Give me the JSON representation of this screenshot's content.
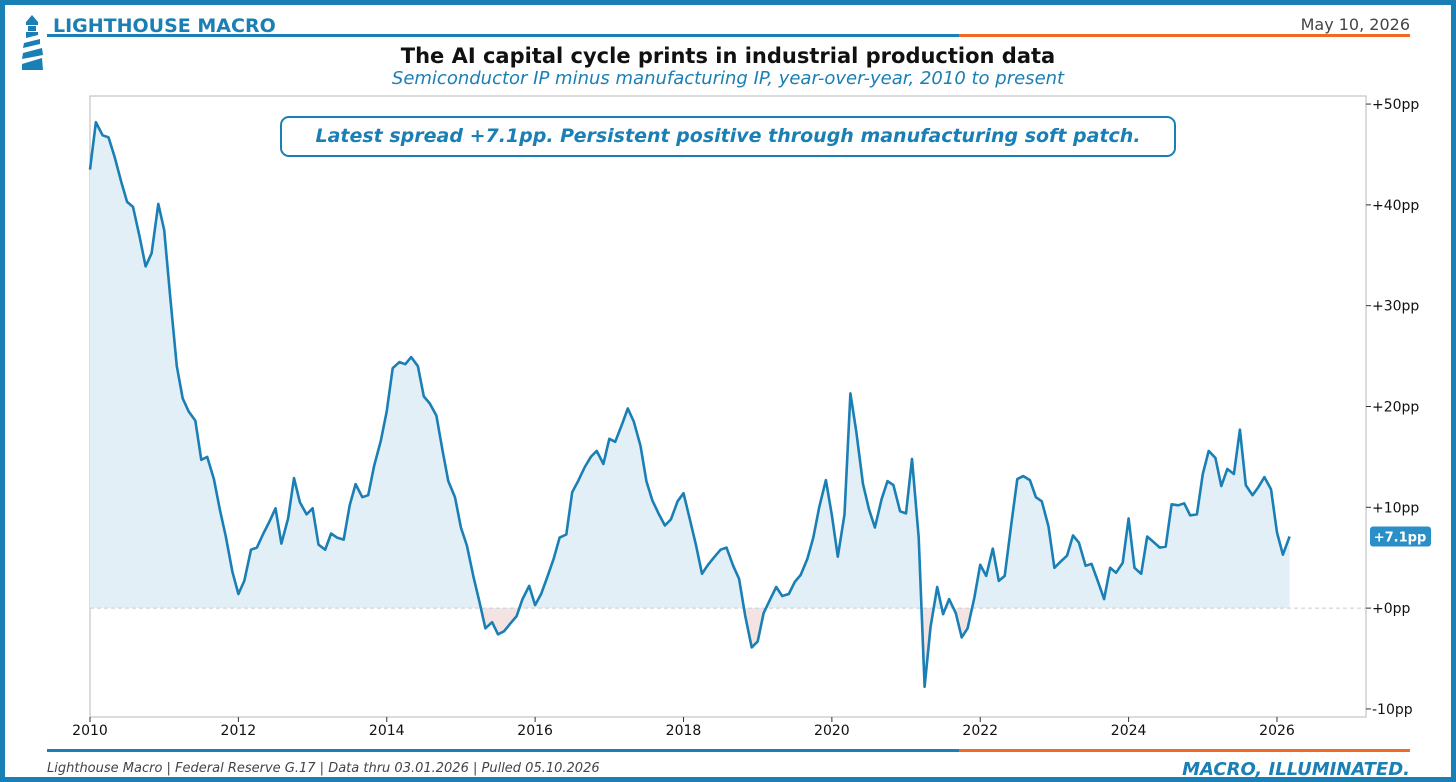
{
  "header": {
    "brand": "LIGHTHOUSE MACRO",
    "date": "May 10, 2026"
  },
  "footer": {
    "source": "Lighthouse Macro | Federal Reserve G.17 | Data thru 03.01.2026 | Pulled 05.10.2026",
    "tagline": "MACRO, ILLUMINATED."
  },
  "colors": {
    "primary": "#1a7fb5",
    "accent": "#f26a21",
    "fill_positive": "#e3eff7",
    "fill_negative": "#f3e3e2",
    "badge": "#2a8fc7"
  },
  "icons": {
    "logo": "lighthouse-icon"
  },
  "chart_data": {
    "type": "area",
    "title": "The AI capital cycle prints in industrial production data",
    "subtitle": "Semiconductor IP minus manufacturing IP, year-over-year, 2010 to present",
    "annotation": "Latest spread +7.1pp. Persistent positive through manufacturing soft patch.",
    "latest_label": "+7.1pp",
    "latest_value": 7.1,
    "xlabel": "",
    "ylabel": "",
    "xlim": [
      2010,
      2027.2
    ],
    "ylim": [
      -10.8,
      50.8
    ],
    "x_ticks": [
      2010,
      2012,
      2014,
      2016,
      2018,
      2020,
      2022,
      2024,
      2026
    ],
    "x_tick_labels": [
      "2010",
      "2012",
      "2014",
      "2016",
      "2018",
      "2020",
      "2022",
      "2024",
      "2026"
    ],
    "y_ticks": [
      -10,
      0,
      10,
      20,
      30,
      40,
      50
    ],
    "y_tick_labels": [
      "-10pp",
      "+0pp",
      "+10pp",
      "+20pp",
      "+30pp",
      "+40pp",
      "+50pp"
    ],
    "y_axis_side": "right",
    "zero_line": true,
    "grid": false,
    "series": [
      {
        "x": [
          2010.0,
          2010.08,
          2010.17,
          2010.25,
          2010.33,
          2010.42,
          2010.5,
          2010.58,
          2010.67,
          2010.75,
          2010.83,
          2010.92,
          2011.0,
          2011.08,
          2011.17,
          2011.25,
          2011.33,
          2011.42,
          2011.5,
          2011.58,
          2011.67,
          2011.75,
          2011.83,
          2011.92,
          2012.0,
          2012.08,
          2012.17,
          2012.25,
          2012.33,
          2012.42,
          2012.5,
          2012.58,
          2012.67,
          2012.75,
          2012.83,
          2012.92,
          2013.0,
          2013.08,
          2013.17,
          2013.25,
          2013.33,
          2013.42,
          2013.5,
          2013.58,
          2013.67,
          2013.75,
          2013.83,
          2013.92,
          2014.0,
          2014.08,
          2014.17,
          2014.25,
          2014.33,
          2014.42,
          2014.5,
          2014.58,
          2014.67,
          2014.75,
          2014.83,
          2014.92,
          2015.0,
          2015.08,
          2015.17,
          2015.25,
          2015.33,
          2015.42,
          2015.5,
          2015.58,
          2015.67,
          2015.75,
          2015.83,
          2015.92,
          2016.0,
          2016.08,
          2016.17,
          2016.25,
          2016.33,
          2016.42,
          2016.5,
          2016.58,
          2016.67,
          2016.75,
          2016.83,
          2016.92,
          2017.0,
          2017.08,
          2017.17,
          2017.25,
          2017.33,
          2017.42,
          2017.5,
          2017.58,
          2017.67,
          2017.75,
          2017.83,
          2017.92,
          2018.0,
          2018.08,
          2018.17,
          2018.25,
          2018.33,
          2018.42,
          2018.5,
          2018.58,
          2018.67,
          2018.75,
          2018.83,
          2018.92,
          2019.0,
          2019.08,
          2019.17,
          2019.25,
          2019.33,
          2019.42,
          2019.5,
          2019.58,
          2019.67,
          2019.75,
          2019.83,
          2019.92,
          2020.0,
          2020.08,
          2020.17,
          2020.25,
          2020.33,
          2020.42,
          2020.5,
          2020.58,
          2020.67,
          2020.75,
          2020.83,
          2020.92,
          2021.0,
          2021.08,
          2021.17,
          2021.25,
          2021.33,
          2021.42,
          2021.5,
          2021.58,
          2021.67,
          2021.75,
          2021.83,
          2021.92,
          2022.0,
          2022.08,
          2022.17,
          2022.25,
          2022.33,
          2022.42,
          2022.5,
          2022.58,
          2022.67,
          2022.75,
          2022.83,
          2022.92,
          2023.0,
          2023.08,
          2023.17,
          2023.25,
          2023.33,
          2023.42,
          2023.5,
          2023.58,
          2023.67,
          2023.75,
          2023.83,
          2023.92,
          2024.0,
          2024.08,
          2024.17,
          2024.25,
          2024.33,
          2024.42,
          2024.5,
          2024.58,
          2024.67,
          2024.75,
          2024.83,
          2024.92,
          2025.0,
          2025.08,
          2025.17,
          2025.25,
          2025.33,
          2025.42,
          2025.5,
          2025.58,
          2025.67,
          2025.75,
          2025.83,
          2025.92,
          2026.0,
          2026.08,
          2026.17
        ],
        "values": [
          43.5,
          48.2,
          46.9,
          46.7,
          44.8,
          42.3,
          40.3,
          39.8,
          36.8,
          33.9,
          35.2,
          40.1,
          37.5,
          31.0,
          24.0,
          20.8,
          19.5,
          18.6,
          14.7,
          15.0,
          12.8,
          9.8,
          7.1,
          3.6,
          1.4,
          2.7,
          5.8,
          6.0,
          7.3,
          8.6,
          9.9,
          6.4,
          8.9,
          12.9,
          10.5,
          9.3,
          9.9,
          6.3,
          5.8,
          7.4,
          7.0,
          6.8,
          10.2,
          12.3,
          11.0,
          11.2,
          14.1,
          16.6,
          19.5,
          23.8,
          24.4,
          24.2,
          24.9,
          24.0,
          21.0,
          20.3,
          19.1,
          15.7,
          12.6,
          11.0,
          8.0,
          6.2,
          3.1,
          0.6,
          -2.0,
          -1.4,
          -2.6,
          -2.3,
          -1.5,
          -0.8,
          0.9,
          2.2,
          0.3,
          1.4,
          3.2,
          4.9,
          7.0,
          7.3,
          11.5,
          12.6,
          14.0,
          15.0,
          15.6,
          14.3,
          16.8,
          16.5,
          18.2,
          19.8,
          18.5,
          16.1,
          12.6,
          10.7,
          9.3,
          8.2,
          8.8,
          10.6,
          11.4,
          9.0,
          6.2,
          3.4,
          4.3,
          5.1,
          5.8,
          6.0,
          4.2,
          2.9,
          -0.7,
          -3.9,
          -3.3,
          -0.5,
          0.9,
          2.1,
          1.2,
          1.4,
          2.6,
          3.3,
          4.9,
          7.0,
          10.0,
          12.7,
          9.2,
          5.1,
          9.3,
          21.3,
          17.5,
          12.3,
          9.8,
          8.0,
          10.8,
          12.6,
          12.2,
          9.6,
          9.4,
          14.8,
          7.0,
          -7.8,
          -1.9,
          2.1,
          -0.6,
          0.9,
          -0.5,
          -2.9,
          -2.0,
          1.0,
          4.3,
          3.2,
          5.9,
          2.7,
          3.2,
          8.4,
          12.8,
          13.1,
          12.7,
          11.0,
          10.6,
          8.1,
          4.0,
          4.6,
          5.2,
          7.2,
          6.5,
          4.2,
          4.4,
          2.8,
          0.9,
          4.0,
          3.5,
          4.5,
          8.9,
          4.0,
          3.4,
          7.1,
          6.6,
          6.0,
          6.1,
          10.3,
          10.2,
          10.4,
          9.2,
          9.3,
          13.3,
          15.6,
          14.9,
          12.1,
          13.8,
          13.3,
          17.7,
          12.2,
          11.2,
          12.0,
          13.0,
          11.8,
          7.5,
          5.3,
          7.1
        ]
      }
    ]
  }
}
